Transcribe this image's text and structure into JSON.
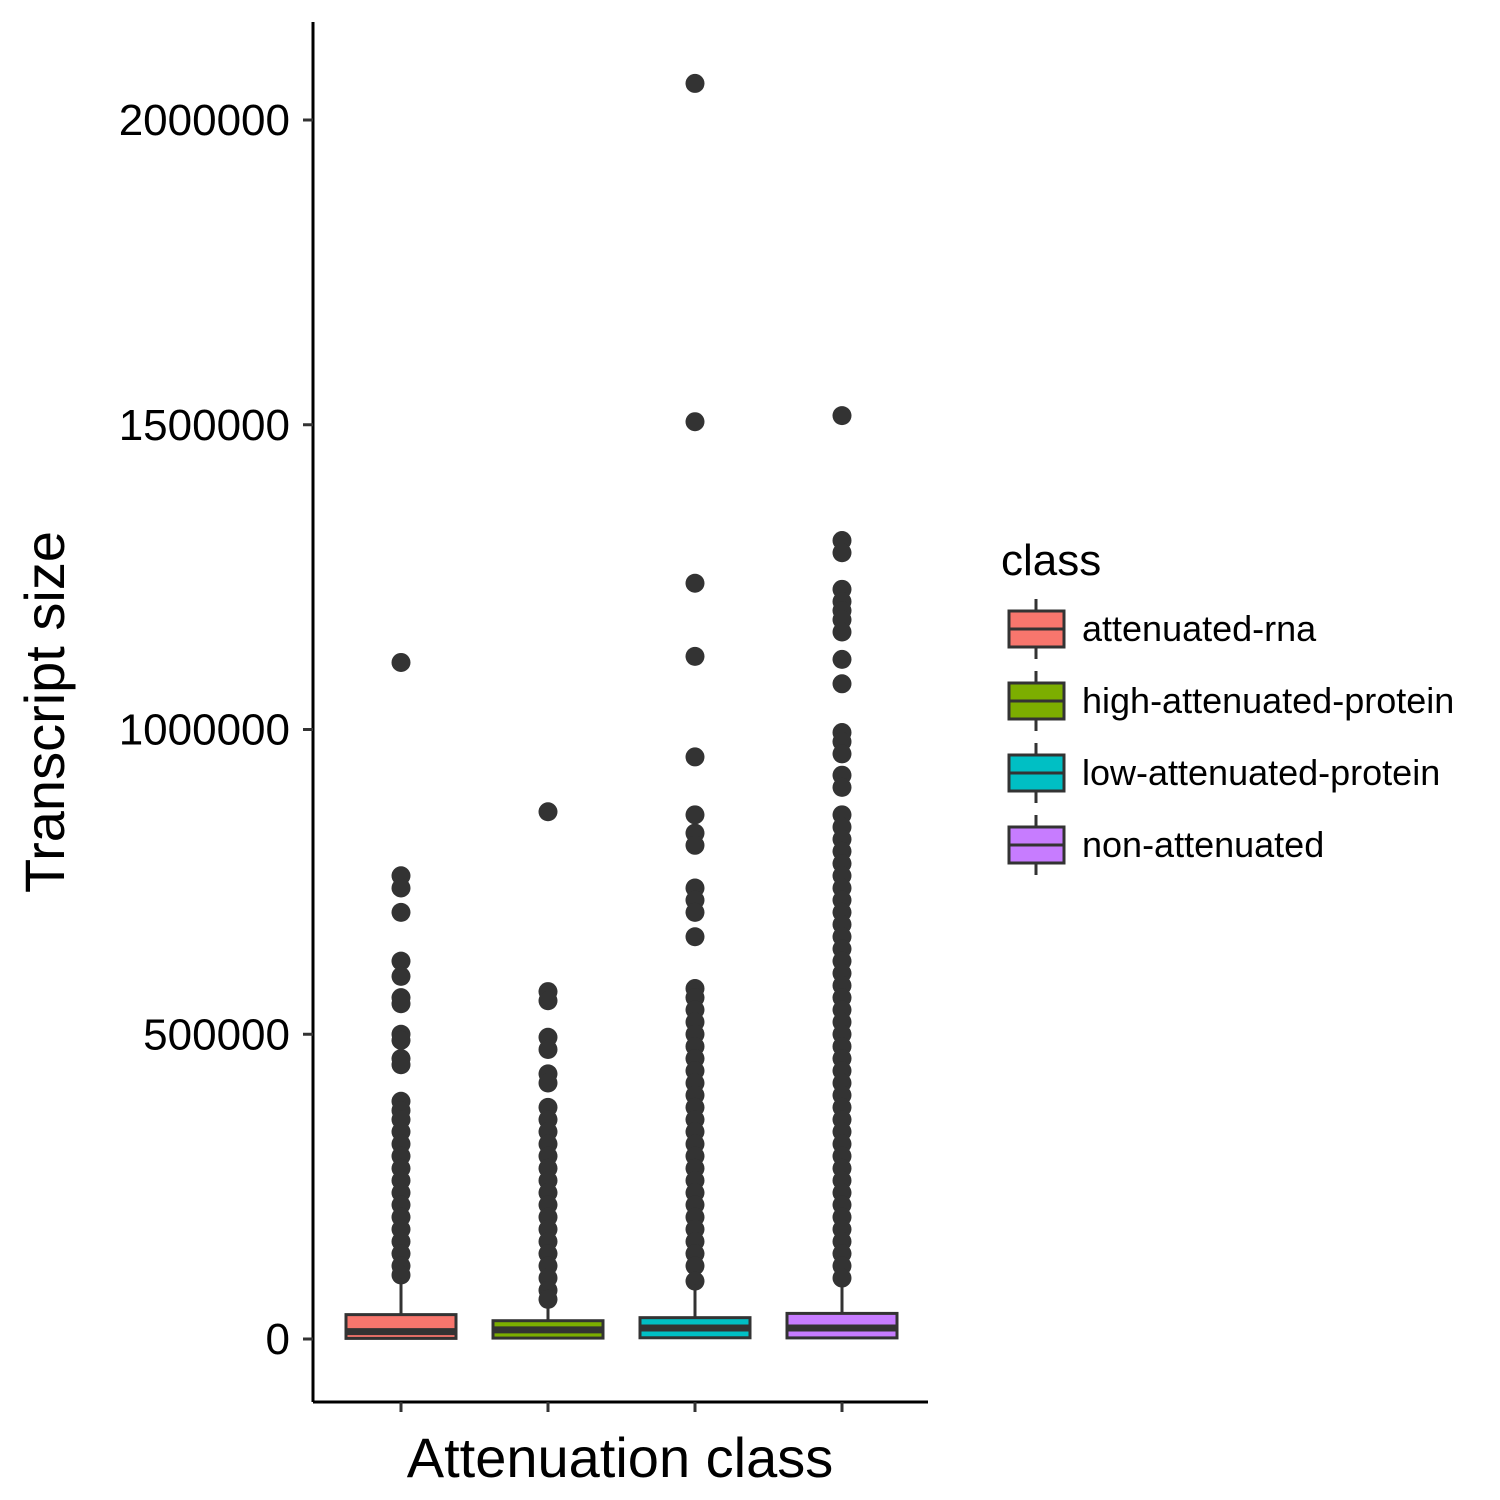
{
  "chart_data": {
    "type": "box",
    "xlabel": "Attenuation class",
    "ylabel": "Transcript size",
    "categories": [
      "attenuated-rna",
      "high-attenuated-protein",
      "low-attenuated-protein",
      "non-attenuated"
    ],
    "y_ticks": [
      0,
      500000,
      1000000,
      1500000,
      2000000
    ],
    "y_tick_labels": [
      "0",
      "500000",
      "1000000",
      "1500000",
      "2000000"
    ],
    "ylim": [
      -105000,
      2160000
    ],
    "grid": false,
    "legend": {
      "title": "class",
      "position": "right"
    },
    "series": [
      {
        "name": "attenuated-rna",
        "color": "#F8766D",
        "box": {
          "lower_whisker": 0,
          "q1": 1000,
          "median": 12000,
          "q3": 40000,
          "upper_whisker": 100000
        },
        "outliers": [
          1110000,
          760000,
          740000,
          700000,
          620000,
          595000,
          560000,
          550000,
          500000,
          490000,
          460000,
          450000,
          390000,
          375000,
          360000,
          340000,
          320000,
          300000,
          280000,
          260000,
          240000,
          220000,
          200000,
          180000,
          160000,
          140000,
          120000,
          105000
        ]
      },
      {
        "name": "high-attenuated-protein",
        "color": "#7CAE00",
        "box": {
          "lower_whisker": 0,
          "q1": 1500,
          "median": 15000,
          "q3": 30000,
          "upper_whisker": 60000
        },
        "outliers": [
          865000,
          570000,
          555000,
          495000,
          475000,
          435000,
          420000,
          380000,
          360000,
          340000,
          320000,
          300000,
          280000,
          260000,
          240000,
          220000,
          200000,
          180000,
          160000,
          140000,
          120000,
          100000,
          80000,
          65000
        ]
      },
      {
        "name": "low-attenuated-protein",
        "color": "#00BFC4",
        "box": {
          "lower_whisker": 0,
          "q1": 2000,
          "median": 18000,
          "q3": 35000,
          "upper_whisker": 90000
        },
        "outliers": [
          2060000,
          1505000,
          1240000,
          1120000,
          955000,
          860000,
          830000,
          810000,
          740000,
          720000,
          700000,
          660000,
          575000,
          560000,
          540000,
          520000,
          500000,
          480000,
          460000,
          440000,
          420000,
          400000,
          380000,
          360000,
          340000,
          320000,
          300000,
          280000,
          260000,
          240000,
          220000,
          200000,
          180000,
          160000,
          140000,
          120000,
          95000
        ]
      },
      {
        "name": "non-attenuated",
        "color": "#C77CFF",
        "box": {
          "lower_whisker": 0,
          "q1": 1800,
          "median": 18000,
          "q3": 42000,
          "upper_whisker": 95000
        },
        "outliers": [
          1515000,
          1310000,
          1290000,
          1230000,
          1210000,
          1195000,
          1180000,
          1160000,
          1115000,
          1075000,
          995000,
          980000,
          960000,
          925000,
          905000,
          860000,
          840000,
          820000,
          800000,
          780000,
          760000,
          740000,
          720000,
          700000,
          680000,
          660000,
          640000,
          620000,
          600000,
          580000,
          560000,
          540000,
          520000,
          500000,
          480000,
          460000,
          440000,
          420000,
          400000,
          380000,
          360000,
          340000,
          320000,
          300000,
          280000,
          260000,
          240000,
          220000,
          200000,
          180000,
          160000,
          140000,
          120000,
          100000
        ]
      }
    ]
  }
}
